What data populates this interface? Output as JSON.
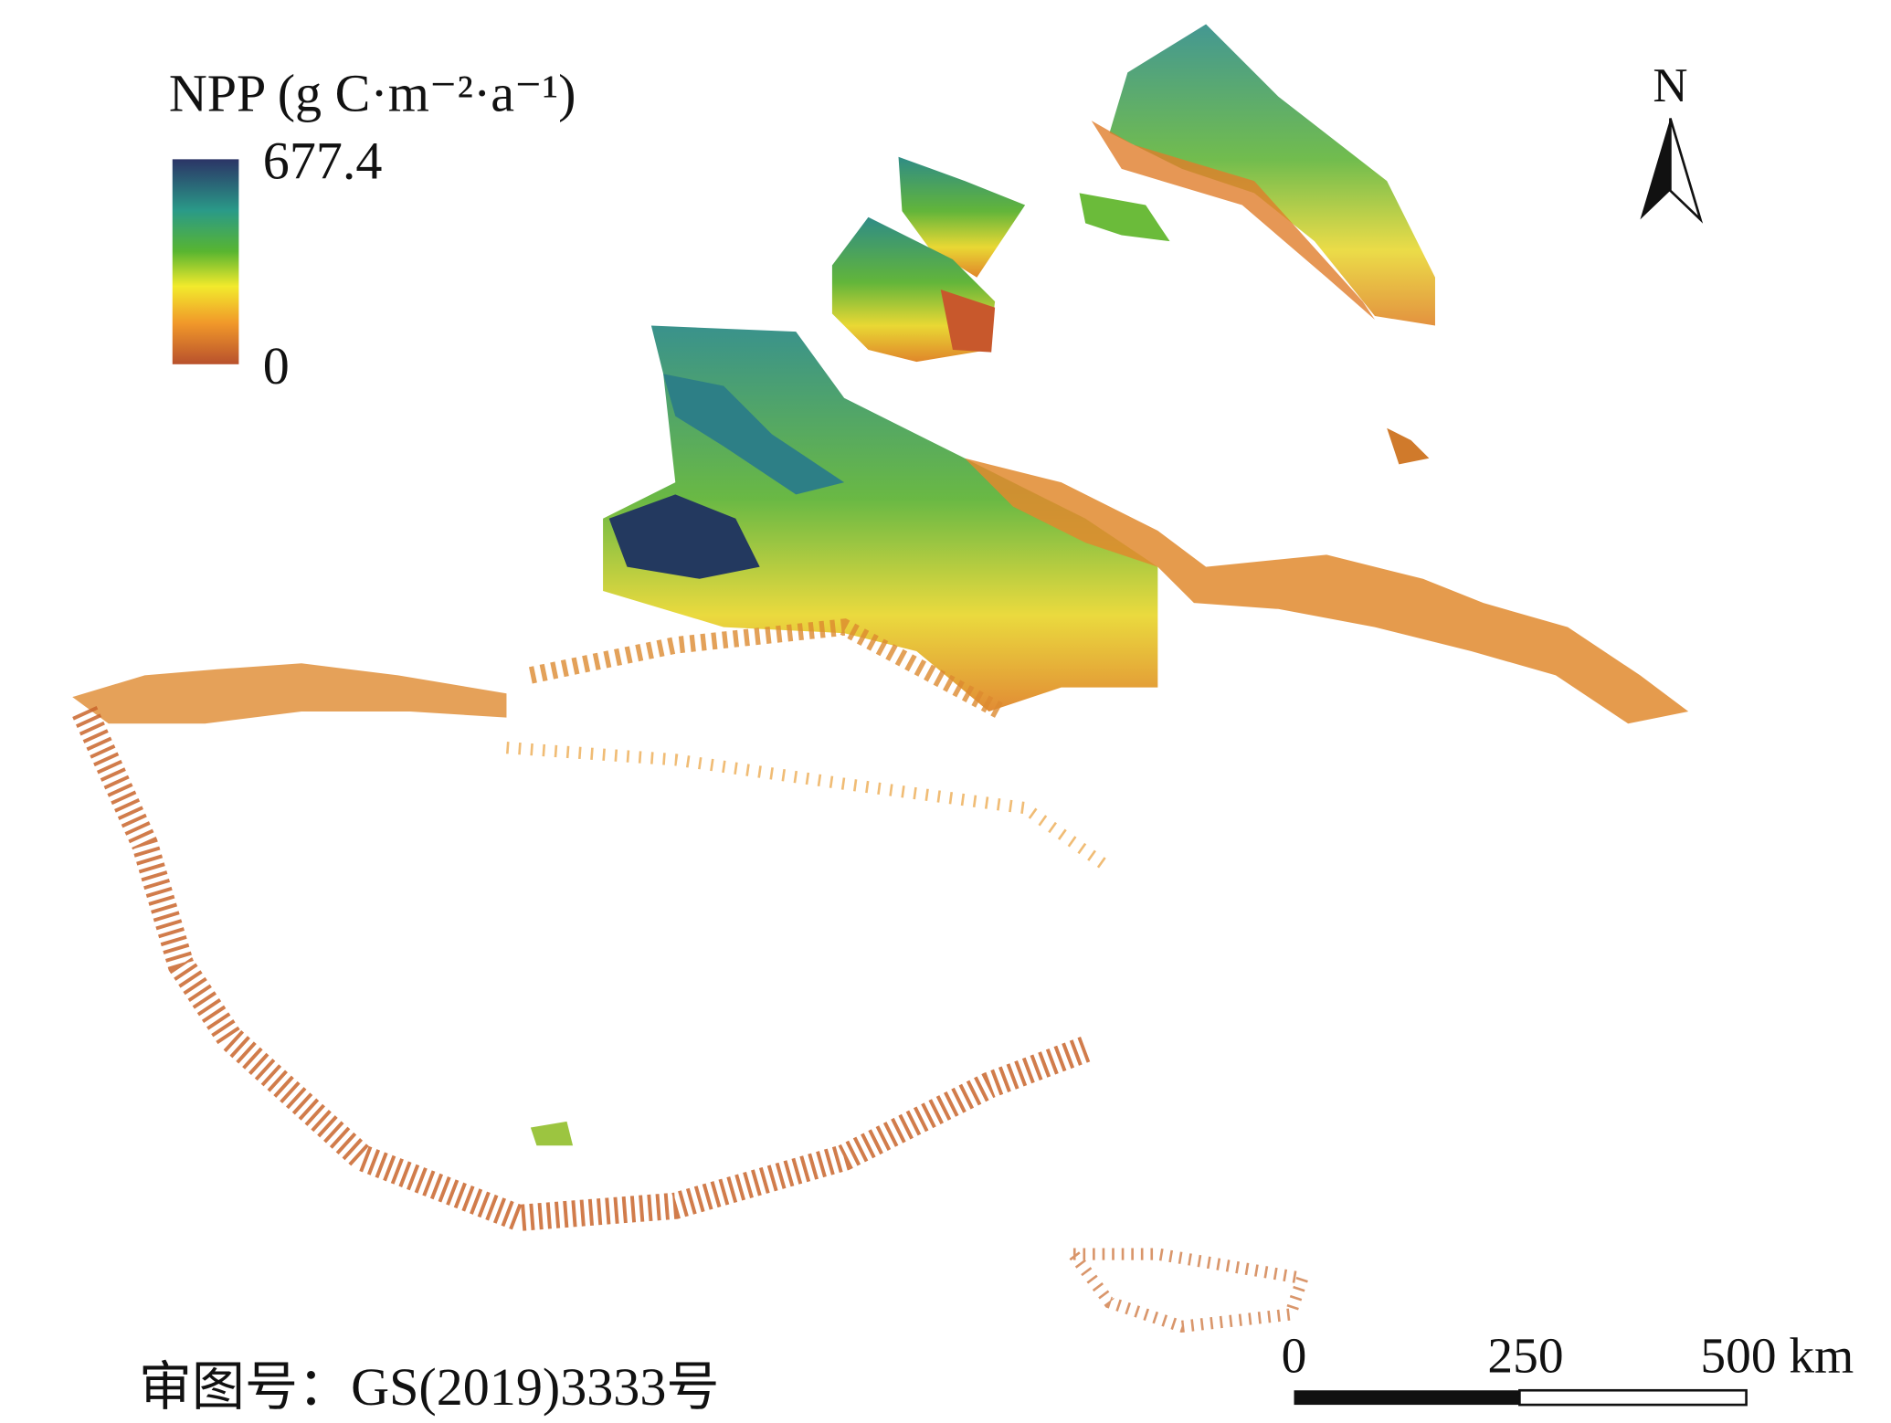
{
  "legend": {
    "title": "NPP (g C·m⁻²·a⁻¹)",
    "max": 677.4,
    "min": 0
  },
  "north_arrow": "N",
  "scale_bar": {
    "labels": [
      0,
      250,
      "500 km"
    ]
  },
  "approval_number": "审图号：GS(2019)3333号"
}
